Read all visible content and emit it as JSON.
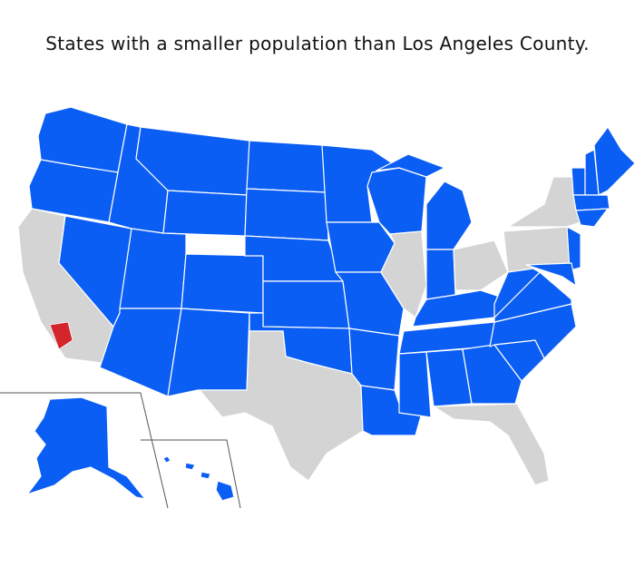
{
  "title": "States with a smaller population than Los Angeles County."
}
